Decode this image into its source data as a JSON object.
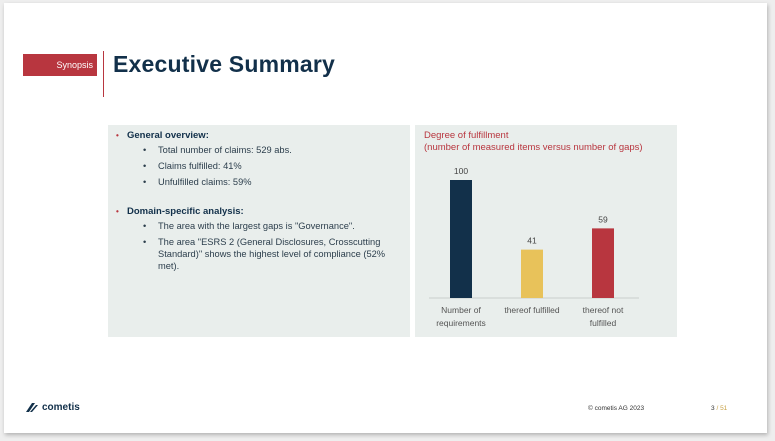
{
  "section_tag": "Synopsis",
  "page_title": "Executive Summary",
  "overview": {
    "groups": [
      {
        "heading": "General overview",
        "suffix": ":",
        "items": [
          "Total number of claims: 529 abs.",
          "Claims fulfilled: 41%",
          "Unfulfilled claims: 59%"
        ]
      },
      {
        "heading": "Domain-specific analysis",
        "suffix": ":",
        "items": [
          "The area with the largest gaps is \"Governance\".",
          "The area \"ESRS 2 (General Disclosures, Crosscutting Standard)\" shows the highest level of compliance (52% met)."
        ]
      }
    ]
  },
  "chart_data": {
    "type": "bar",
    "title": "Degree of fulfillment",
    "subtitle": "(number of measured items versus number of gaps)",
    "categories": [
      "Number of requirements",
      "thereof fulfilled",
      "thereof not fulfilled"
    ],
    "category_lines": [
      [
        "Number of",
        "requirements"
      ],
      [
        "thereof fulfilled"
      ],
      [
        "thereof not",
        "fulfilled"
      ]
    ],
    "values": [
      100,
      41,
      59
    ],
    "value_labels": [
      "100",
      "41",
      "59"
    ],
    "colors": [
      "#12304a",
      "#e8c25a",
      "#b8363f"
    ],
    "ylim": [
      0,
      100
    ],
    "grid": false,
    "legend": "none"
  },
  "footer": {
    "logo_text": "cometis",
    "copyright": "© cometis AG 2023",
    "page_current": "3",
    "page_separator": "/",
    "page_total": "51"
  },
  "colors": {
    "accent": "#b8363f",
    "navy": "#12304a",
    "panel": "#e9eeec"
  }
}
